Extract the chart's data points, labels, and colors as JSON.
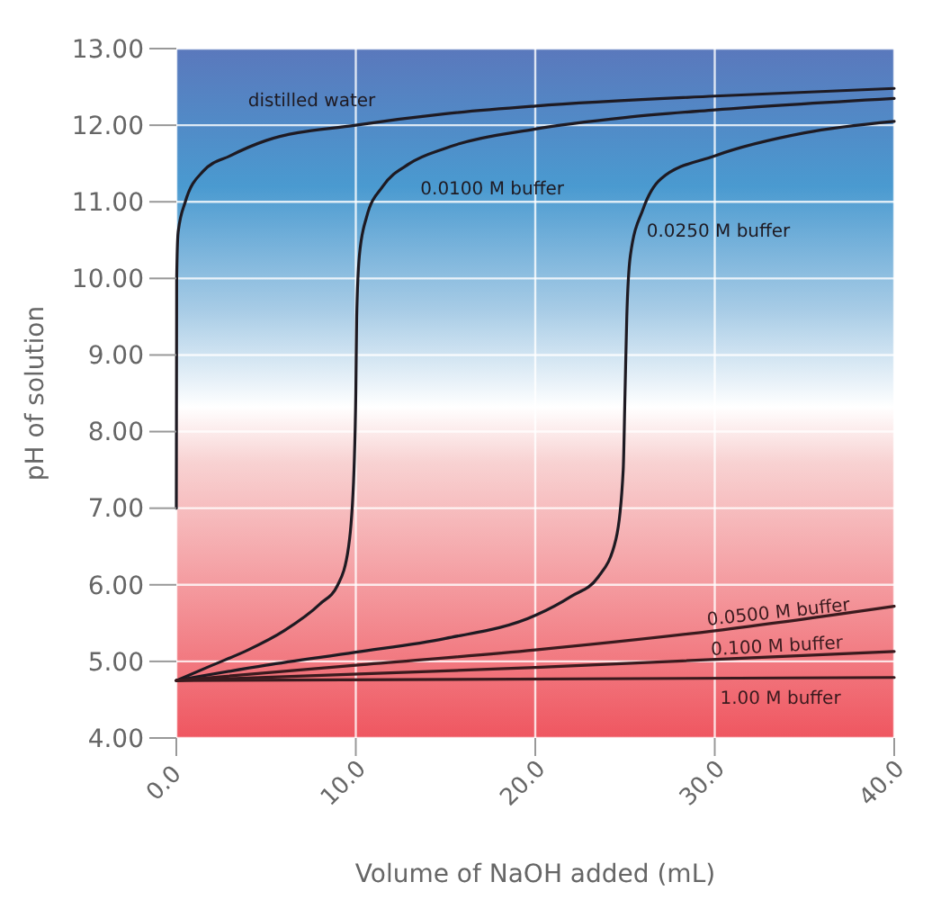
{
  "chart_data": {
    "type": "line",
    "xlabel": "Volume of NaOH added (mL)",
    "ylabel": "pH of solution",
    "grid": true,
    "legend": false,
    "marker": "none",
    "line_style": "solid",
    "xlim": [
      0,
      40
    ],
    "ylim": [
      4,
      13
    ],
    "xticks": [
      {
        "value": 0,
        "label": "0.0"
      },
      {
        "value": 10,
        "label": "10.0"
      },
      {
        "value": 20,
        "label": "20.0"
      },
      {
        "value": 30,
        "label": "30.0"
      },
      {
        "value": 40,
        "label": "40.0"
      }
    ],
    "yticks": [
      {
        "value": 4,
        "label": "4.00"
      },
      {
        "value": 5,
        "label": "5.00"
      },
      {
        "value": 6,
        "label": "6.00"
      },
      {
        "value": 7,
        "label": "7.00"
      },
      {
        "value": 8,
        "label": "8.00"
      },
      {
        "value": 9,
        "label": "9.00"
      },
      {
        "value": 10,
        "label": "10.00"
      },
      {
        "value": 11,
        "label": "11.00"
      },
      {
        "value": 12,
        "label": "12.00"
      },
      {
        "value": 13,
        "label": "13.00"
      }
    ],
    "series": [
      {
        "name": "distilled water",
        "color": "#1e1a22",
        "x": [
          0,
          0.02,
          0.1,
          0.5,
          1.5,
          3,
          5,
          10,
          15,
          20,
          30,
          40
        ],
        "values": [
          7,
          10,
          10.6,
          11,
          11.4,
          11.6,
          11.8,
          12,
          12.15,
          12.25,
          12.38,
          12.48
        ]
      },
      {
        "name": "0.0100 M buffer",
        "color": "#1e1a22",
        "x": [
          0,
          2,
          4,
          6,
          8,
          9,
          9.6,
          9.9,
          10,
          10.05,
          10.2,
          10.6,
          11.5,
          13,
          15,
          20,
          25,
          30,
          40
        ],
        "values": [
          4.75,
          4.95,
          5.15,
          5.4,
          5.75,
          6,
          6.5,
          7.5,
          8.5,
          9.5,
          10.3,
          10.8,
          11.2,
          11.5,
          11.7,
          11.95,
          12.1,
          12.2,
          12.35
        ]
      },
      {
        "name": "0.0250 M buffer",
        "color": "#1e1a22",
        "x": [
          0,
          5,
          10,
          15,
          20,
          22,
          23.5,
          24.5,
          24.9,
          25,
          25.1,
          25.3,
          26,
          27,
          30,
          35,
          40
        ],
        "values": [
          4.75,
          4.95,
          5.12,
          5.3,
          5.6,
          5.85,
          6.1,
          6.6,
          7.5,
          8.5,
          9.5,
          10.3,
          10.9,
          11.3,
          11.6,
          11.9,
          12.05
        ]
      },
      {
        "name": "0.0500 M buffer",
        "color": "#3a1a1e",
        "x": [
          0,
          10,
          20,
          30,
          40
        ],
        "values": [
          4.75,
          4.95,
          5.15,
          5.4,
          5.72
        ]
      },
      {
        "name": "0.100 M  buffer",
        "color": "#3a1a1e",
        "x": [
          0,
          20,
          40
        ],
        "values": [
          4.75,
          4.92,
          5.13
        ]
      },
      {
        "name": "1.00 M buffer",
        "color": "#3a1a1e",
        "x": [
          0,
          40
        ],
        "values": [
          4.75,
          4.79
        ]
      }
    ]
  }
}
